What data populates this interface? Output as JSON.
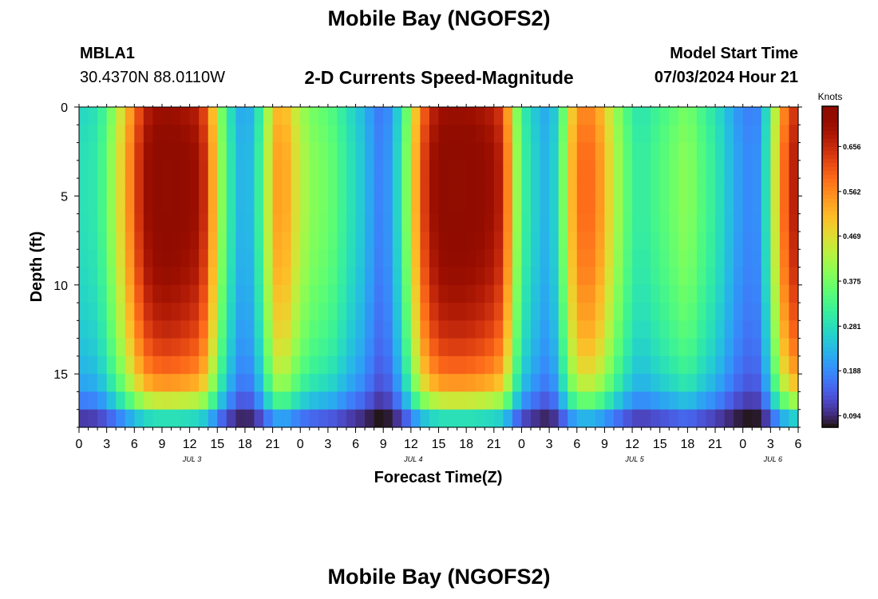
{
  "page": {
    "title": "Mobile Bay (NGOFS2)",
    "title_repeat": "Mobile Bay (NGOFS2)",
    "station_id": "MBLA1",
    "coordinates": "30.4370N  88.0110W",
    "subtitle": "2-D Currents Speed-Magnitude",
    "model_start_label": "Model Start Time",
    "model_start_value": "07/03/2024 Hour 21"
  },
  "chart_data": {
    "type": "heatmap",
    "title": "2-D Currents Speed-Magnitude",
    "xlabel": "Forecast Time(Z)",
    "ylabel": "Depth (ft)",
    "x_tick_labels": [
      "0",
      "3",
      "6",
      "9",
      "12",
      "15",
      "18",
      "21",
      "0",
      "3",
      "6",
      "9",
      "12",
      "15",
      "18",
      "21",
      "0",
      "3",
      "6",
      "9",
      "12",
      "15",
      "18",
      "21",
      "0",
      "3",
      "6"
    ],
    "date_labels": [
      {
        "label": "JUL 3",
        "hour": 12
      },
      {
        "label": "JUL 4",
        "hour": 36
      },
      {
        "label": "JUL 5",
        "hour": 60
      },
      {
        "label": "JUL 6",
        "hour": 75
      }
    ],
    "xlim": [
      0,
      78
    ],
    "x_units": "hours from 07/03/2024 00Z",
    "y_tick_labels": [
      "0",
      "5",
      "10",
      "15"
    ],
    "y_tick_values": [
      0,
      5,
      10,
      15
    ],
    "ylim": [
      0,
      18
    ],
    "y_inverted": true,
    "colorbar": {
      "label": "Knots",
      "min": 0.07,
      "max": 0.74,
      "ticks": [
        "0.094",
        "0.188",
        "0.281",
        "0.375",
        "0.469",
        "0.562",
        "0.656"
      ],
      "tick_values": [
        0.094,
        0.188,
        0.281,
        0.375,
        0.469,
        0.562,
        0.656
      ],
      "colormap": "turbo"
    },
    "temporal_profile": {
      "hours": [
        0,
        2,
        3,
        4,
        5,
        6,
        7,
        8,
        9,
        10,
        11,
        12,
        13,
        14,
        15,
        16,
        17,
        18,
        19,
        20,
        21,
        22,
        23,
        24,
        25,
        26,
        27,
        28,
        29,
        30,
        31,
        32,
        33,
        34,
        35,
        36,
        37,
        38,
        39,
        40,
        41,
        42,
        43,
        44,
        45,
        46,
        47,
        48,
        49,
        50,
        51,
        52,
        53,
        54,
        55,
        56,
        57,
        58,
        59,
        60,
        61,
        62,
        63,
        64,
        65,
        66,
        67,
        68,
        69,
        70,
        71,
        72,
        73,
        74,
        75,
        76,
        77,
        78
      ],
      "speed_knots": [
        0.28,
        0.3,
        0.36,
        0.44,
        0.52,
        0.61,
        0.69,
        0.73,
        0.74,
        0.74,
        0.73,
        0.72,
        0.7,
        0.62,
        0.45,
        0.33,
        0.25,
        0.21,
        0.26,
        0.36,
        0.52,
        0.56,
        0.5,
        0.44,
        0.4,
        0.38,
        0.37,
        0.34,
        0.3,
        0.27,
        0.24,
        0.19,
        0.17,
        0.22,
        0.31,
        0.45,
        0.6,
        0.68,
        0.73,
        0.74,
        0.74,
        0.74,
        0.73,
        0.72,
        0.7,
        0.66,
        0.48,
        0.33,
        0.28,
        0.24,
        0.22,
        0.3,
        0.46,
        0.58,
        0.6,
        0.58,
        0.52,
        0.44,
        0.38,
        0.32,
        0.3,
        0.32,
        0.34,
        0.36,
        0.38,
        0.4,
        0.36,
        0.33,
        0.3,
        0.26,
        0.22,
        0.19,
        0.18,
        0.2,
        0.36,
        0.55,
        0.64,
        0.7
      ]
    },
    "depth_profile": {
      "depths_ft": [
        0,
        1,
        2,
        3,
        4,
        5,
        6,
        7,
        8,
        9,
        10,
        11,
        12,
        13,
        14,
        15,
        16,
        17,
        18
      ],
      "relative_factor": [
        0.95,
        0.97,
        0.99,
        1.0,
        1.0,
        1.0,
        1.0,
        0.99,
        0.98,
        0.97,
        0.95,
        0.93,
        0.91,
        0.88,
        0.84,
        0.79,
        0.7,
        0.52,
        0.25
      ]
    }
  }
}
